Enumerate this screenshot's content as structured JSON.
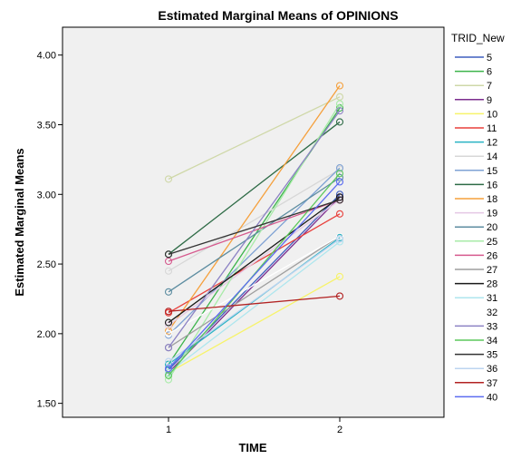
{
  "chart_data": {
    "type": "line",
    "title": "Estimated Marginal Means of OPINIONS",
    "xlabel": "TIME",
    "ylabel": "Estimated Marginal Means",
    "categories": [
      "1",
      "2"
    ],
    "ylim": [
      1.4,
      4.2
    ],
    "yticks": [
      "1.50",
      "2.00",
      "2.50",
      "3.00",
      "3.50",
      "4.00"
    ],
    "grid": false,
    "legend_title": "TRID_New",
    "legend_position": "right",
    "background": "#f0f0f0",
    "series": [
      {
        "name": "5",
        "color": "#3f5fbf",
        "values": [
          1.74,
          3.0
        ]
      },
      {
        "name": "6",
        "color": "#3cb44b",
        "values": [
          1.78,
          3.62
        ]
      },
      {
        "name": "7",
        "color": "#cfd8a8",
        "values": [
          3.11,
          3.7
        ]
      },
      {
        "name": "9",
        "color": "#7b2d8e",
        "values": [
          1.72,
          2.98
        ]
      },
      {
        "name": "10",
        "color": "#f7f36a",
        "values": [
          1.72,
          2.41
        ]
      },
      {
        "name": "11",
        "color": "#e8413c",
        "values": [
          2.15,
          2.86
        ]
      },
      {
        "name": "12",
        "color": "#29b3c4",
        "values": [
          1.78,
          2.69
        ]
      },
      {
        "name": "14",
        "color": "#d7d7d7",
        "values": [
          2.45,
          3.18
        ]
      },
      {
        "name": "15",
        "color": "#7fa2d4",
        "values": [
          1.99,
          3.19
        ]
      },
      {
        "name": "16",
        "color": "#2e6b46",
        "values": [
          2.57,
          3.52
        ]
      },
      {
        "name": "18",
        "color": "#f5a03c",
        "values": [
          2.02,
          3.78
        ]
      },
      {
        "name": "19",
        "color": "#e4c8e4",
        "values": [
          2.06,
          2.96
        ]
      },
      {
        "name": "20",
        "color": "#5d8da1",
        "values": [
          2.3,
          3.12
        ]
      },
      {
        "name": "25",
        "color": "#a8eba8",
        "values": [
          1.67,
          3.65
        ]
      },
      {
        "name": "26",
        "color": "#d65a8e",
        "values": [
          2.52,
          2.96
        ]
      },
      {
        "name": "27",
        "color": "#9e9e9e",
        "values": [
          1.9,
          2.7
        ]
      },
      {
        "name": "28",
        "color": "#1a1a1a",
        "values": [
          2.08,
          2.98
        ]
      },
      {
        "name": "31",
        "color": "#aee6ee",
        "values": [
          1.72,
          2.66
        ]
      },
      {
        "name": "32",
        "color": "#ffffff",
        "values": [
          2.0,
          2.7
        ]
      },
      {
        "name": "33",
        "color": "#8c82c4",
        "values": [
          1.9,
          3.6
        ]
      },
      {
        "name": "34",
        "color": "#5cc85c",
        "values": [
          1.7,
          3.15
        ]
      },
      {
        "name": "35",
        "color": "#333333",
        "values": [
          2.57,
          2.96
        ]
      },
      {
        "name": "36",
        "color": "#bcd4f0",
        "values": [
          1.8,
          2.68
        ]
      },
      {
        "name": "37",
        "color": "#b22222",
        "values": [
          2.16,
          2.27
        ]
      },
      {
        "name": "40",
        "color": "#5c6cf0",
        "values": [
          1.75,
          3.09
        ]
      }
    ]
  }
}
